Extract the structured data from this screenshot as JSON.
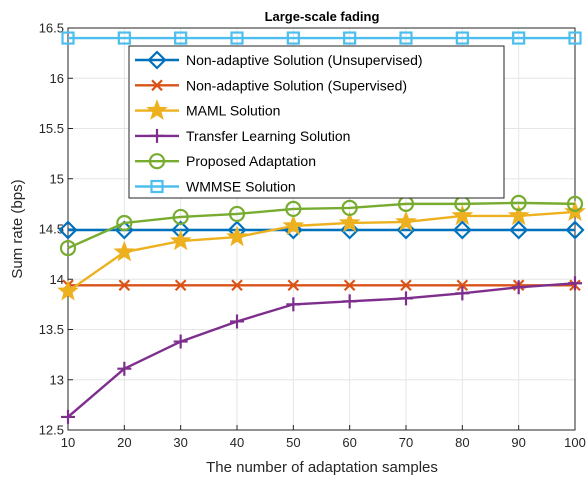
{
  "chart_data": {
    "type": "line",
    "title": "Large-scale fading",
    "xlabel": "The number of adaptation samples",
    "ylabel": "Sum rate (bps)",
    "xlim": [
      10,
      100
    ],
    "ylim": [
      12.5,
      16.5
    ],
    "xticks": [
      10,
      20,
      30,
      40,
      50,
      60,
      70,
      80,
      90,
      100
    ],
    "xtick_labels": [
      "10",
      "20",
      "30",
      "40",
      "50",
      "60",
      "70",
      "80",
      "90",
      "100"
    ],
    "yticks": [
      12.5,
      13,
      13.5,
      14,
      14.5,
      15,
      15.5,
      16,
      16.5
    ],
    "ytick_labels": [
      "12.5",
      "13",
      "13.5",
      "14",
      "14.5",
      "15",
      "15.5",
      "16",
      "16.5"
    ],
    "grid": true,
    "legend_position": "top",
    "x": [
      10,
      20,
      30,
      40,
      50,
      60,
      70,
      80,
      90,
      100
    ],
    "series": [
      {
        "name": "Non-adaptive Solution (Unsupervised)",
        "color": "#0072BD",
        "marker": "diamond",
        "values": [
          14.49,
          14.49,
          14.49,
          14.49,
          14.49,
          14.49,
          14.49,
          14.49,
          14.49,
          14.49
        ]
      },
      {
        "name": "Non-adaptive Solution (Supervised)",
        "color": "#D95319",
        "marker": "x",
        "values": [
          13.94,
          13.94,
          13.94,
          13.94,
          13.94,
          13.94,
          13.94,
          13.94,
          13.94,
          13.94
        ]
      },
      {
        "name": "MAML Solution",
        "color": "#EDB120",
        "marker": "star",
        "values": [
          13.88,
          14.27,
          14.38,
          14.42,
          14.53,
          14.56,
          14.57,
          14.63,
          14.63,
          14.67
        ]
      },
      {
        "name": "Transfer Learning Solution",
        "color": "#7E2F8E",
        "marker": "plus",
        "values": [
          12.63,
          13.11,
          13.38,
          13.58,
          13.75,
          13.78,
          13.81,
          13.86,
          13.92,
          13.96
        ]
      },
      {
        "name": "Proposed Adaptation",
        "color": "#77AC30",
        "marker": "circle",
        "values": [
          14.31,
          14.56,
          14.62,
          14.65,
          14.7,
          14.71,
          14.75,
          14.75,
          14.76,
          14.75
        ]
      },
      {
        "name": "WMMSE Solution",
        "color": "#4DBEEE",
        "marker": "square",
        "values": [
          16.4,
          16.4,
          16.4,
          16.4,
          16.4,
          16.4,
          16.4,
          16.4,
          16.4,
          16.4
        ]
      }
    ]
  }
}
